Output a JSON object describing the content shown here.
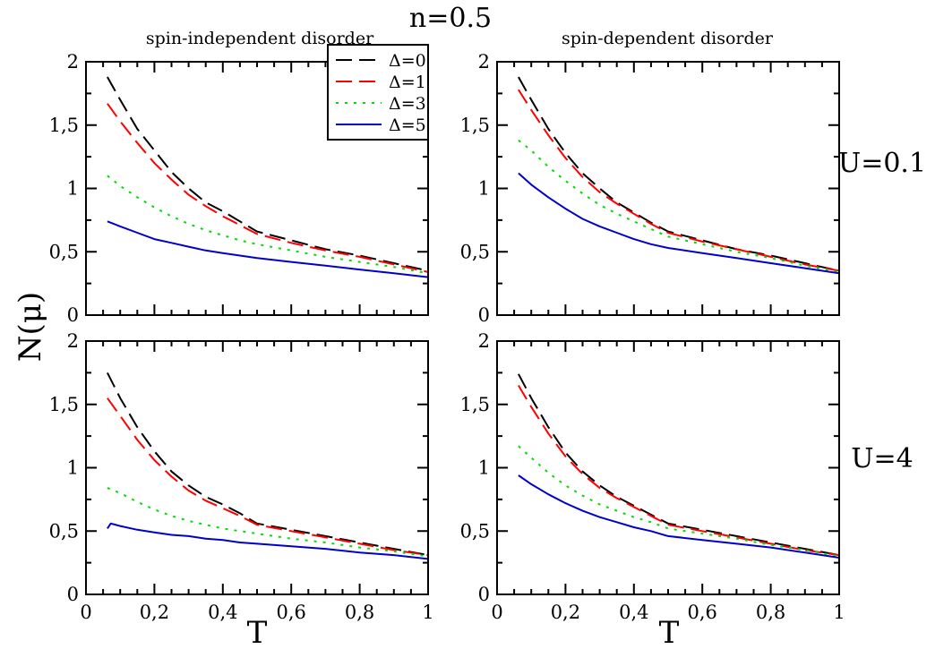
{
  "figure": {
    "title": "n=0.5",
    "ylabel": "N(μ)",
    "xlabel": "T",
    "column_titles": [
      "spin-independent disorder",
      "spin-dependent disorder"
    ],
    "row_labels": [
      "U=0.1",
      "U=4"
    ]
  },
  "legend": {
    "placement": "top, inside upper-left panel",
    "entries": [
      {
        "label": "Δ=0",
        "color": "#000000",
        "dash": "dashed"
      },
      {
        "label": "Δ=1",
        "color": "#ff0000",
        "dash": "dashed"
      },
      {
        "label": "Δ=3",
        "color": "#00dd00",
        "dash": "dotted"
      },
      {
        "label": "Δ=5",
        "color": "#0000cc",
        "dash": "solid"
      }
    ]
  },
  "axes": {
    "xlim": [
      0,
      1
    ],
    "ylim": [
      0,
      2
    ],
    "xticks": [
      0,
      0.2,
      0.4,
      0.6,
      0.8,
      1
    ],
    "xtick_labels": [
      "0",
      "0,2",
      "0,4",
      "0,6",
      "0,8",
      "1"
    ],
    "yticks": [
      0,
      0.5,
      1,
      1.5,
      2
    ],
    "ytick_labels": [
      "0",
      "0,5",
      "1",
      "1,5",
      "2"
    ],
    "grid": false
  },
  "chart_data": [
    {
      "type": "line",
      "panel": "top-left",
      "title": "spin-independent disorder",
      "row": "U=0.1",
      "xlim": [
        0,
        1
      ],
      "ylim": [
        0,
        2
      ],
      "series": [
        {
          "name": "Δ=0",
          "x": [
            0.0625,
            0.1,
            0.15,
            0.2,
            0.25,
            0.3,
            0.35,
            0.4,
            0.45,
            0.5,
            0.6,
            0.7,
            0.8,
            0.9,
            1.0
          ],
          "y": [
            1.88,
            1.7,
            1.47,
            1.3,
            1.13,
            1.0,
            0.89,
            0.82,
            0.74,
            0.66,
            0.59,
            0.52,
            0.47,
            0.41,
            0.35
          ]
        },
        {
          "name": "Δ=1",
          "x": [
            0.0625,
            0.1,
            0.15,
            0.2,
            0.25,
            0.3,
            0.35,
            0.4,
            0.45,
            0.5,
            0.6,
            0.7,
            0.8,
            0.9,
            1.0
          ],
          "y": [
            1.67,
            1.53,
            1.36,
            1.2,
            1.07,
            0.95,
            0.86,
            0.78,
            0.71,
            0.64,
            0.57,
            0.51,
            0.46,
            0.4,
            0.34
          ]
        },
        {
          "name": "Δ=3",
          "x": [
            0.0625,
            0.1,
            0.15,
            0.2,
            0.25,
            0.3,
            0.35,
            0.4,
            0.45,
            0.5,
            0.6,
            0.7,
            0.8,
            0.9,
            1.0
          ],
          "y": [
            1.1,
            1.02,
            0.93,
            0.85,
            0.78,
            0.72,
            0.67,
            0.63,
            0.59,
            0.56,
            0.51,
            0.46,
            0.42,
            0.38,
            0.33
          ]
        },
        {
          "name": "Δ=5",
          "x": [
            0.0625,
            0.1,
            0.15,
            0.2,
            0.25,
            0.3,
            0.35,
            0.4,
            0.45,
            0.5,
            0.6,
            0.7,
            0.8,
            0.9,
            1.0
          ],
          "y": [
            0.74,
            0.7,
            0.65,
            0.6,
            0.57,
            0.54,
            0.51,
            0.49,
            0.47,
            0.45,
            0.42,
            0.39,
            0.36,
            0.33,
            0.3
          ]
        }
      ]
    },
    {
      "type": "line",
      "panel": "top-right",
      "title": "spin-dependent disorder",
      "row": "U=0.1",
      "xlim": [
        0,
        1
      ],
      "ylim": [
        0,
        2
      ],
      "series": [
        {
          "name": "Δ=0",
          "x": [
            0.0625,
            0.1,
            0.15,
            0.2,
            0.25,
            0.3,
            0.35,
            0.4,
            0.45,
            0.5,
            0.6,
            0.7,
            0.8,
            0.9,
            1.0
          ],
          "y": [
            1.88,
            1.7,
            1.47,
            1.28,
            1.12,
            1.0,
            0.89,
            0.81,
            0.73,
            0.66,
            0.59,
            0.52,
            0.47,
            0.41,
            0.35
          ]
        },
        {
          "name": "Δ=1",
          "x": [
            0.0625,
            0.1,
            0.15,
            0.2,
            0.25,
            0.3,
            0.35,
            0.4,
            0.45,
            0.5,
            0.6,
            0.7,
            0.8,
            0.9,
            1.0
          ],
          "y": [
            1.78,
            1.62,
            1.42,
            1.24,
            1.09,
            0.97,
            0.88,
            0.8,
            0.72,
            0.65,
            0.58,
            0.52,
            0.46,
            0.4,
            0.35
          ]
        },
        {
          "name": "Δ=3",
          "x": [
            0.0625,
            0.1,
            0.15,
            0.2,
            0.25,
            0.3,
            0.35,
            0.4,
            0.45,
            0.5,
            0.6,
            0.7,
            0.8,
            0.9,
            1.0
          ],
          "y": [
            1.38,
            1.3,
            1.17,
            1.06,
            0.96,
            0.87,
            0.8,
            0.74,
            0.68,
            0.62,
            0.56,
            0.5,
            0.45,
            0.39,
            0.34
          ]
        },
        {
          "name": "Δ=5",
          "x": [
            0.0625,
            0.1,
            0.15,
            0.2,
            0.25,
            0.3,
            0.35,
            0.4,
            0.45,
            0.5,
            0.6,
            0.7,
            0.8,
            0.9,
            1.0
          ],
          "y": [
            1.12,
            1.03,
            0.93,
            0.84,
            0.76,
            0.7,
            0.65,
            0.6,
            0.56,
            0.53,
            0.49,
            0.45,
            0.41,
            0.37,
            0.33
          ]
        }
      ]
    },
    {
      "type": "line",
      "panel": "bottom-left",
      "title": "spin-independent disorder",
      "row": "U=4",
      "xlim": [
        0,
        1
      ],
      "ylim": [
        0,
        2
      ],
      "series": [
        {
          "name": "Δ=0",
          "x": [
            0.0625,
            0.1,
            0.15,
            0.2,
            0.25,
            0.3,
            0.35,
            0.4,
            0.45,
            0.5,
            0.6,
            0.7,
            0.8,
            0.9,
            1.0
          ],
          "y": [
            1.75,
            1.55,
            1.32,
            1.13,
            0.97,
            0.86,
            0.77,
            0.71,
            0.64,
            0.56,
            0.51,
            0.46,
            0.41,
            0.36,
            0.31
          ]
        },
        {
          "name": "Δ=1",
          "x": [
            0.0625,
            0.1,
            0.15,
            0.2,
            0.25,
            0.3,
            0.35,
            0.4,
            0.45,
            0.5,
            0.6,
            0.7,
            0.8,
            0.9,
            1.0
          ],
          "y": [
            1.55,
            1.41,
            1.22,
            1.06,
            0.93,
            0.82,
            0.74,
            0.68,
            0.62,
            0.55,
            0.5,
            0.45,
            0.4,
            0.35,
            0.31
          ]
        },
        {
          "name": "Δ=3",
          "x": [
            0.0625,
            0.1,
            0.15,
            0.2,
            0.25,
            0.3,
            0.35,
            0.4,
            0.45,
            0.5,
            0.6,
            0.7,
            0.8,
            0.9,
            1.0
          ],
          "y": [
            0.84,
            0.8,
            0.73,
            0.67,
            0.62,
            0.58,
            0.55,
            0.52,
            0.5,
            0.48,
            0.44,
            0.41,
            0.37,
            0.34,
            0.3
          ]
        },
        {
          "name": "Δ=5",
          "x": [
            0.0625,
            0.0725,
            0.1,
            0.15,
            0.2,
            0.25,
            0.3,
            0.35,
            0.4,
            0.45,
            0.5,
            0.6,
            0.7,
            0.8,
            0.9,
            1.0
          ],
          "y": [
            0.52,
            0.56,
            0.54,
            0.51,
            0.49,
            0.47,
            0.46,
            0.44,
            0.43,
            0.41,
            0.4,
            0.38,
            0.36,
            0.33,
            0.31,
            0.28
          ]
        }
      ]
    },
    {
      "type": "line",
      "panel": "bottom-right",
      "title": "spin-dependent disorder",
      "row": "U=4",
      "xlim": [
        0,
        1
      ],
      "ylim": [
        0,
        2
      ],
      "series": [
        {
          "name": "Δ=0",
          "x": [
            0.0625,
            0.1,
            0.15,
            0.2,
            0.25,
            0.3,
            0.35,
            0.4,
            0.45,
            0.5,
            0.6,
            0.7,
            0.8,
            0.9,
            1.0
          ],
          "y": [
            1.74,
            1.55,
            1.32,
            1.12,
            0.97,
            0.86,
            0.77,
            0.7,
            0.63,
            0.56,
            0.51,
            0.46,
            0.41,
            0.36,
            0.31
          ]
        },
        {
          "name": "Δ=1",
          "x": [
            0.0625,
            0.1,
            0.15,
            0.2,
            0.25,
            0.3,
            0.35,
            0.4,
            0.45,
            0.5,
            0.6,
            0.7,
            0.8,
            0.9,
            1.0
          ],
          "y": [
            1.65,
            1.48,
            1.27,
            1.09,
            0.95,
            0.84,
            0.76,
            0.69,
            0.62,
            0.55,
            0.5,
            0.45,
            0.4,
            0.35,
            0.31
          ]
        },
        {
          "name": "Δ=3",
          "x": [
            0.0625,
            0.1,
            0.15,
            0.2,
            0.25,
            0.3,
            0.35,
            0.4,
            0.45,
            0.5,
            0.6,
            0.7,
            0.8,
            0.9,
            1.0
          ],
          "y": [
            1.17,
            1.08,
            0.96,
            0.86,
            0.78,
            0.71,
            0.66,
            0.61,
            0.57,
            0.52,
            0.48,
            0.44,
            0.39,
            0.35,
            0.3
          ]
        },
        {
          "name": "Δ=5",
          "x": [
            0.0625,
            0.1,
            0.15,
            0.2,
            0.25,
            0.3,
            0.35,
            0.4,
            0.45,
            0.5,
            0.6,
            0.7,
            0.8,
            0.9,
            1.0
          ],
          "y": [
            0.94,
            0.87,
            0.79,
            0.72,
            0.66,
            0.61,
            0.57,
            0.53,
            0.5,
            0.46,
            0.43,
            0.4,
            0.37,
            0.33,
            0.29
          ]
        }
      ]
    }
  ]
}
